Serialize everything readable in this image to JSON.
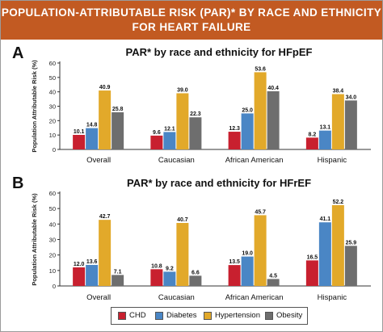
{
  "header": {
    "line1": "POPULATION-ATTRIBUTABLE RISK (PAR)* BY RACE AND ETHNICITY",
    "line2": "FOR HEART FAILURE"
  },
  "panels": [
    {
      "letter": "A"
    },
    {
      "letter": "B"
    }
  ],
  "colors": {
    "header_bg": "#c25a22",
    "CHD": "#c8202f",
    "Diabetes": "#4a86c5",
    "Hypertension": "#e2a92a",
    "Obesity": "#6e6e6e"
  },
  "chart_data": [
    {
      "type": "bar",
      "title": "PAR* by race and ethnicity for HFpEF",
      "ylabel": "Population Attributable Risk (%)",
      "xlabel": "",
      "ylim": [
        0,
        60
      ],
      "yticks": [
        "0",
        "10",
        "20",
        "30",
        "40",
        "50",
        "60"
      ],
      "grid": false,
      "categories": [
        "Overall",
        "Caucasian",
        "African American",
        "Hispanic"
      ],
      "series": [
        {
          "name": "CHD",
          "values": [
            10.1,
            9.6,
            12.3,
            8.2
          ],
          "labels": [
            "10.1",
            "9.6",
            "12.3",
            "8.2"
          ]
        },
        {
          "name": "Diabetes",
          "values": [
            14.8,
            12.1,
            25.0,
            13.1
          ],
          "labels": [
            "14.8",
            "12.1",
            "25.0",
            "13.1"
          ]
        },
        {
          "name": "Hypertension",
          "values": [
            40.9,
            39.0,
            53.6,
            38.4
          ],
          "labels": [
            "40.9",
            "39.0",
            "53.6",
            "38.4"
          ]
        },
        {
          "name": "Obesity",
          "values": [
            25.8,
            22.3,
            40.4,
            34.0
          ],
          "labels": [
            "25.8",
            "22.3",
            "40.4",
            "34.0"
          ]
        }
      ]
    },
    {
      "type": "bar",
      "title": "PAR* by race and ethnicity for HFrEF",
      "ylabel": "Population Attributable Risk (%)",
      "xlabel": "",
      "ylim": [
        0,
        60
      ],
      "yticks": [
        "0",
        "10",
        "20",
        "30",
        "40",
        "50",
        "60"
      ],
      "grid": false,
      "categories": [
        "Overall",
        "Caucasian",
        "African American",
        "Hispanic"
      ],
      "series": [
        {
          "name": "CHD",
          "values": [
            12.0,
            10.8,
            13.5,
            16.5
          ],
          "labels": [
            "12.0",
            "10.8",
            "13.5",
            "16.5"
          ]
        },
        {
          "name": "Diabetes",
          "values": [
            13.6,
            9.2,
            19.0,
            41.1
          ],
          "labels": [
            "13.6",
            "9.2",
            "19.0",
            "41.1"
          ]
        },
        {
          "name": "Hypertension",
          "values": [
            42.7,
            40.7,
            45.7,
            52.2
          ],
          "labels": [
            "42.7",
            "40.7",
            "45.7",
            "52.2"
          ]
        },
        {
          "name": "Obesity",
          "values": [
            7.1,
            6.6,
            4.5,
            25.9
          ],
          "labels": [
            "7.1",
            "6.6",
            "4.5",
            "25.9"
          ]
        }
      ]
    }
  ],
  "legend": {
    "position": "bottom-center",
    "items": [
      {
        "label": "CHD",
        "color": "#c8202f"
      },
      {
        "label": "Diabetes",
        "color": "#4a86c5"
      },
      {
        "label": "Hypertension",
        "color": "#e2a92a"
      },
      {
        "label": "Obesity",
        "color": "#6e6e6e"
      }
    ]
  }
}
